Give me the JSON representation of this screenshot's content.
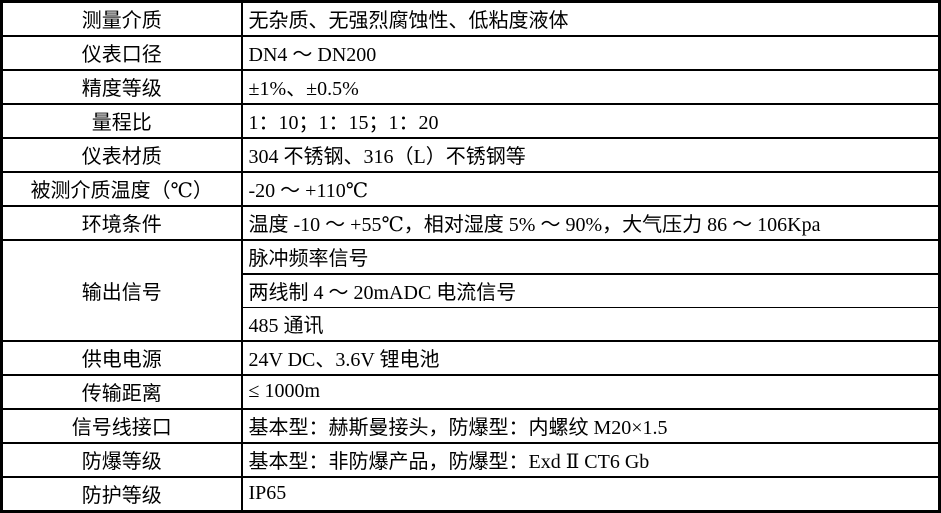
{
  "colors": {
    "background": "#ffffff",
    "border": "#000000",
    "text": "#000000"
  },
  "table": {
    "rows": [
      {
        "label": "测量介质",
        "value": "无杂质、无强烈腐蚀性、低粘度液体"
      },
      {
        "label": "仪表口径",
        "value": "DN4 ～ DN200"
      },
      {
        "label": "精度等级",
        "value": "±1%、±0.5%"
      },
      {
        "label": "量程比",
        "value": "1：10；1：15；1：20"
      },
      {
        "label": "仪表材质",
        "value": "304 不锈钢、316（L）不锈钢等"
      },
      {
        "label": "被测介质温度（℃）",
        "value": "-20 ～ +110℃"
      },
      {
        "label": "环境条件",
        "value": "温度 -10 ～ +55℃，相对湿度 5% ～ 90%，大气压力 86 ～ 106Kpa"
      },
      {
        "label": "输出信号",
        "values": [
          "脉冲频率信号",
          "两线制 4 ～ 20mADC 电流信号",
          "485 通讯"
        ]
      },
      {
        "label": "供电电源",
        "value": "24V DC、3.6V 锂电池"
      },
      {
        "label": "传输距离",
        "value": "≤ 1000m"
      },
      {
        "label": "信号线接口",
        "value": "基本型：赫斯曼接头，防爆型：内螺纹 M20×1.5"
      },
      {
        "label": "防爆等级",
        "value": "基本型：非防爆产品，防爆型：Exd Ⅱ CT6 Gb"
      },
      {
        "label": "防护等级",
        "value": "IP65"
      }
    ]
  }
}
